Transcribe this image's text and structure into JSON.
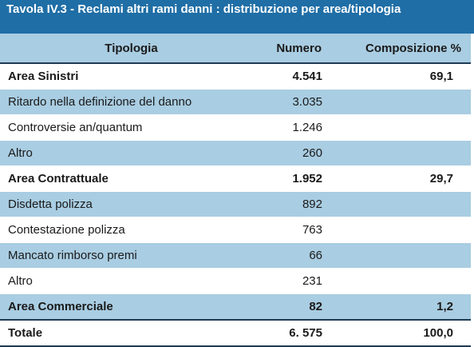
{
  "header": {
    "title": "Tavola IV.3 - Reclami altri rami danni : distribuzione per area/tipologia"
  },
  "table": {
    "columns": [
      "Tipologia",
      "Numero",
      "Composizione %"
    ],
    "rows": [
      {
        "cells": [
          "Area Sinistri",
          "4.541",
          "69,1"
        ],
        "bold": true
      },
      {
        "cells": [
          "Ritardo nella definizione del danno",
          "3.035"
        ]
      },
      {
        "cells": [
          "Controversie an/quantum",
          "1.246"
        ]
      },
      {
        "cells": [
          "Altro",
          "260"
        ]
      },
      {
        "cells": [
          "Area Contrattuale",
          "1.952",
          "29,7"
        ],
        "bold": true
      },
      {
        "cells": [
          "Disdetta polizza",
          "892"
        ]
      },
      {
        "cells": [
          "Contestazione polizza",
          "763"
        ]
      },
      {
        "cells": [
          "Mancato rimborso premi",
          "66"
        ]
      },
      {
        "cells": [
          "Altro",
          "231"
        ]
      },
      {
        "cells": [
          "Area Commerciale",
          "82",
          "1,2"
        ],
        "bold": true
      },
      {
        "cells": [
          "Totale",
          "6. 575",
          "100,0"
        ],
        "bold": true
      }
    ]
  }
}
